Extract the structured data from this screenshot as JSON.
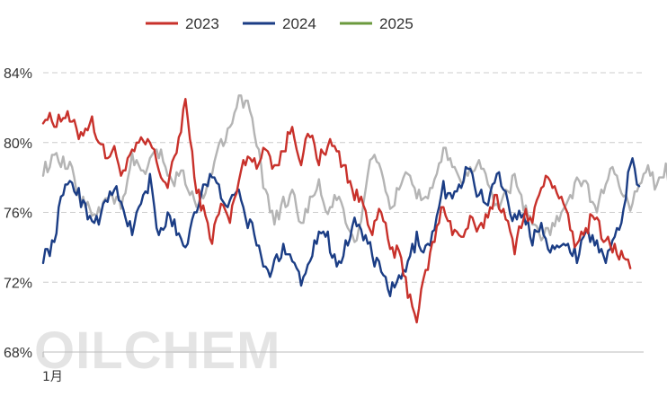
{
  "watermark": "OILCHEM",
  "colors": {
    "grid": "#cccccc",
    "axis": "#bbbbbb",
    "text": "#333333"
  },
  "chart_data": {
    "type": "line",
    "title": "",
    "xlabel": "",
    "ylabel": "",
    "x_tick_labels": [
      "1月"
    ],
    "y_ticks": [
      "68%",
      "72%",
      "76%",
      "80%",
      "84%"
    ],
    "ylim": [
      68,
      84
    ],
    "grid": "horizontal dashed",
    "legend_position": "top",
    "x_points_per_year": 270,
    "series": [
      {
        "name": "2023",
        "color": "#c8312b",
        "anchors": [
          [
            0,
            81.5
          ],
          [
            5,
            81.2
          ],
          [
            10,
            81.6
          ],
          [
            16,
            80.5
          ],
          [
            22,
            81.2
          ],
          [
            28,
            79.2
          ],
          [
            32,
            79.5
          ],
          [
            36,
            78.2
          ],
          [
            42,
            79.8
          ],
          [
            48,
            80.0
          ],
          [
            52,
            78.5
          ],
          [
            56,
            77.5
          ],
          [
            60,
            79.5
          ],
          [
            64,
            82.5
          ],
          [
            68,
            78.0
          ],
          [
            72,
            76.0
          ],
          [
            76,
            74.5
          ],
          [
            80,
            76.5
          ],
          [
            84,
            75.5
          ],
          [
            88,
            78.0
          ],
          [
            92,
            79.5
          ],
          [
            96,
            78.5
          ],
          [
            100,
            80.0
          ],
          [
            104,
            78.5
          ],
          [
            108,
            79.5
          ],
          [
            112,
            81.0
          ],
          [
            116,
            79.0
          ],
          [
            120,
            80.5
          ],
          [
            124,
            79.0
          ],
          [
            128,
            80.0
          ],
          [
            132,
            79.5
          ],
          [
            136,
            78.5
          ],
          [
            140,
            77.0
          ],
          [
            144,
            76.5
          ],
          [
            148,
            75.0
          ],
          [
            152,
            76.0
          ],
          [
            156,
            74.0
          ],
          [
            160,
            73.5
          ],
          [
            164,
            71.5
          ],
          [
            168,
            70.0
          ],
          [
            172,
            72.5
          ],
          [
            176,
            74.5
          ],
          [
            180,
            76.5
          ],
          [
            184,
            75.0
          ],
          [
            188,
            74.5
          ],
          [
            192,
            75.5
          ],
          [
            196,
            74.8
          ],
          [
            200,
            76.0
          ],
          [
            204,
            77.0
          ],
          [
            208,
            75.5
          ],
          [
            212,
            74.0
          ],
          [
            216,
            76.0
          ],
          [
            220,
            75.5
          ],
          [
            224,
            77.5
          ],
          [
            228,
            78.0
          ],
          [
            232,
            77.0
          ],
          [
            236,
            75.5
          ],
          [
            240,
            74.0
          ],
          [
            244,
            75.0
          ],
          [
            248,
            76.0
          ],
          [
            252,
            74.5
          ],
          [
            256,
            74.0
          ],
          [
            260,
            73.5
          ],
          [
            264,
            72.8
          ]
        ],
        "values": []
      },
      {
        "name": "2024",
        "color": "#1b3d85",
        "anchors": [
          [
            0,
            73.5
          ],
          [
            4,
            74.0
          ],
          [
            8,
            76.5
          ],
          [
            12,
            78.0
          ],
          [
            16,
            77.0
          ],
          [
            20,
            76.0
          ],
          [
            24,
            75.5
          ],
          [
            28,
            76.5
          ],
          [
            32,
            77.5
          ],
          [
            36,
            76.0
          ],
          [
            40,
            75.0
          ],
          [
            44,
            76.5
          ],
          [
            48,
            77.8
          ],
          [
            52,
            74.5
          ],
          [
            56,
            75.8
          ],
          [
            60,
            75.0
          ],
          [
            64,
            74.0
          ],
          [
            68,
            76.0
          ],
          [
            72,
            77.5
          ],
          [
            76,
            78.0
          ],
          [
            80,
            77.0
          ],
          [
            84,
            76.5
          ],
          [
            88,
            77.0
          ],
          [
            92,
            75.5
          ],
          [
            96,
            74.5
          ],
          [
            100,
            72.5
          ],
          [
            104,
            73.0
          ],
          [
            108,
            74.0
          ],
          [
            112,
            73.5
          ],
          [
            116,
            72.0
          ],
          [
            120,
            73.5
          ],
          [
            124,
            75.0
          ],
          [
            128,
            74.5
          ],
          [
            132,
            73.0
          ],
          [
            136,
            74.0
          ],
          [
            140,
            75.5
          ],
          [
            144,
            74.8
          ],
          [
            148,
            73.5
          ],
          [
            152,
            72.5
          ],
          [
            156,
            71.5
          ],
          [
            160,
            72.0
          ],
          [
            164,
            73.0
          ],
          [
            168,
            74.5
          ],
          [
            172,
            73.8
          ],
          [
            176,
            75.0
          ],
          [
            180,
            77.5
          ],
          [
            184,
            76.5
          ],
          [
            188,
            77.8
          ],
          [
            192,
            78.5
          ],
          [
            196,
            77.0
          ],
          [
            200,
            76.5
          ],
          [
            204,
            78.5
          ],
          [
            208,
            77.0
          ],
          [
            212,
            75.5
          ],
          [
            216,
            76.0
          ],
          [
            220,
            74.5
          ],
          [
            224,
            75.5
          ],
          [
            228,
            74.0
          ],
          [
            232,
            73.8
          ],
          [
            236,
            74.2
          ],
          [
            240,
            73.5
          ],
          [
            244,
            75.0
          ],
          [
            248,
            74.5
          ],
          [
            252,
            73.2
          ],
          [
            256,
            74.0
          ],
          [
            260,
            75.5
          ],
          [
            264,
            79.0
          ],
          [
            268,
            77.5
          ]
        ],
        "values": []
      },
      {
        "name": "2025",
        "color": "#6b9a3e",
        "values": []
      },
      {
        "name": "",
        "color": "#b4b4b4",
        "anchors": [
          [
            0,
            78.5
          ],
          [
            6,
            79.0
          ],
          [
            12,
            78.5
          ],
          [
            18,
            76.5
          ],
          [
            24,
            76.0
          ],
          [
            30,
            77.0
          ],
          [
            36,
            76.5
          ],
          [
            40,
            79.0
          ],
          [
            46,
            78.0
          ],
          [
            50,
            79.5
          ],
          [
            54,
            79.0
          ],
          [
            58,
            77.5
          ],
          [
            62,
            78.5
          ],
          [
            66,
            77.0
          ],
          [
            70,
            76.5
          ],
          [
            76,
            78.5
          ],
          [
            82,
            80.5
          ],
          [
            88,
            82.5
          ],
          [
            92,
            82.0
          ],
          [
            96,
            80.0
          ],
          [
            100,
            77.0
          ],
          [
            104,
            75.5
          ],
          [
            108,
            76.5
          ],
          [
            112,
            77.0
          ],
          [
            116,
            75.5
          ],
          [
            120,
            76.5
          ],
          [
            124,
            77.5
          ],
          [
            128,
            76.0
          ],
          [
            132,
            77.0
          ],
          [
            136,
            75.5
          ],
          [
            140,
            74.0
          ],
          [
            144,
            76.5
          ],
          [
            148,
            79.5
          ],
          [
            152,
            78.0
          ],
          [
            156,
            76.0
          ],
          [
            160,
            77.5
          ],
          [
            164,
            78.5
          ],
          [
            168,
            77.0
          ],
          [
            172,
            76.5
          ],
          [
            176,
            77.5
          ],
          [
            180,
            79.5
          ],
          [
            184,
            79.0
          ],
          [
            188,
            77.5
          ],
          [
            192,
            78.5
          ],
          [
            196,
            79.0
          ],
          [
            200,
            77.5
          ],
          [
            204,
            76.5
          ],
          [
            208,
            77.0
          ],
          [
            212,
            78.0
          ],
          [
            216,
            76.5
          ],
          [
            220,
            75.5
          ],
          [
            224,
            74.5
          ],
          [
            228,
            75.0
          ],
          [
            232,
            75.5
          ],
          [
            236,
            76.5
          ],
          [
            240,
            78.0
          ],
          [
            244,
            77.5
          ],
          [
            248,
            76.0
          ],
          [
            252,
            77.5
          ],
          [
            256,
            78.5
          ],
          [
            260,
            77.0
          ],
          [
            264,
            76.5
          ],
          [
            268,
            77.5
          ],
          [
            272,
            78.5
          ],
          [
            276,
            77.5
          ],
          [
            280,
            78.5
          ],
          [
            284,
            77.0
          ],
          [
            288,
            75.5
          ],
          [
            292,
            77.5
          ],
          [
            296,
            78.5
          ],
          [
            300,
            78.0
          ],
          [
            304,
            77.0
          ],
          [
            308,
            78.5
          ],
          [
            312,
            77.5
          ]
        ],
        "values": []
      }
    ]
  }
}
